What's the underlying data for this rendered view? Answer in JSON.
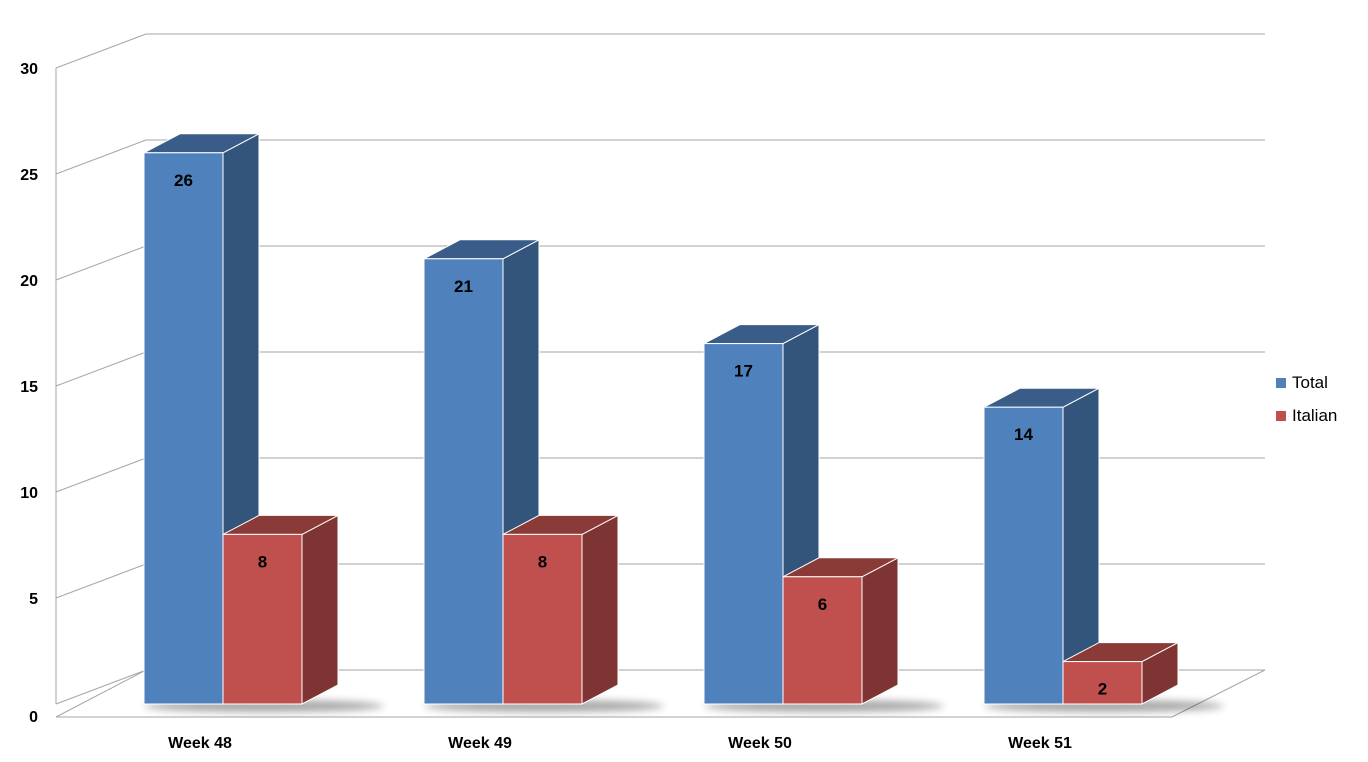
{
  "chart_data": {
    "type": "bar",
    "style": "3d-clustered-column",
    "categories": [
      "Week 48",
      "Week 49",
      "Week 50",
      "Week 51"
    ],
    "series": [
      {
        "name": "Total",
        "values": [
          26,
          21,
          17,
          14
        ],
        "color": "#4F81BD"
      },
      {
        "name": "Italian",
        "values": [
          8,
          8,
          6,
          2
        ],
        "color": "#C0504D"
      }
    ],
    "ylim": [
      0,
      30
    ],
    "yticks": [
      0,
      5,
      10,
      15,
      20,
      25,
      30
    ],
    "grid": true,
    "legend_position": "right",
    "data_labels": true
  }
}
